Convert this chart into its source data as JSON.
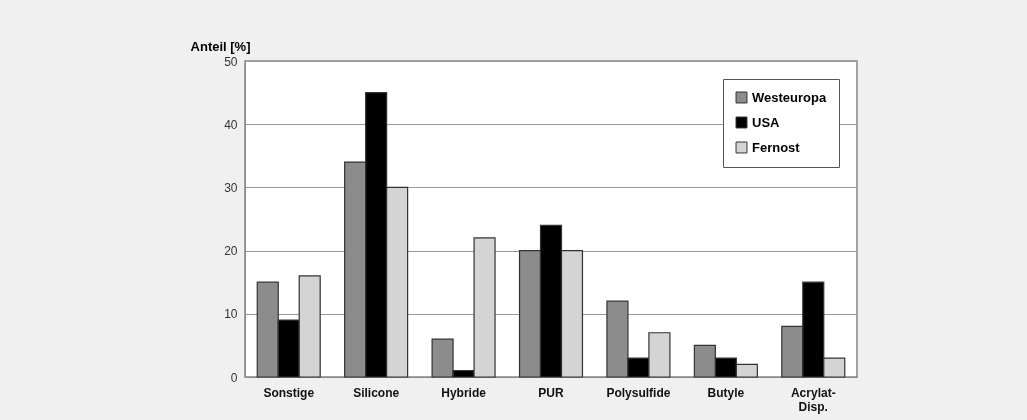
{
  "chart_data": {
    "type": "bar",
    "ylabel": "Anteil [%]",
    "categories": [
      "Sonstige",
      "Silicone",
      "Hybride",
      "PUR",
      "Polysulfide",
      "Butyle",
      "Acrylat-Disp."
    ],
    "series": [
      {
        "name": "Westeuropa",
        "color": "#8c8c8c",
        "values": [
          15,
          34,
          6,
          20,
          12,
          5,
          8
        ]
      },
      {
        "name": "USA",
        "color": "#000000",
        "values": [
          9,
          45,
          1,
          24,
          3,
          3,
          15
        ]
      },
      {
        "name": "Fernost",
        "color": "#d4d4d4",
        "values": [
          16,
          30,
          22,
          20,
          7,
          2,
          3
        ]
      }
    ],
    "ylim": [
      0,
      50
    ],
    "yticks": [
      0,
      10,
      20,
      30,
      40,
      50
    ],
    "grid": "y",
    "legend": "top right"
  }
}
